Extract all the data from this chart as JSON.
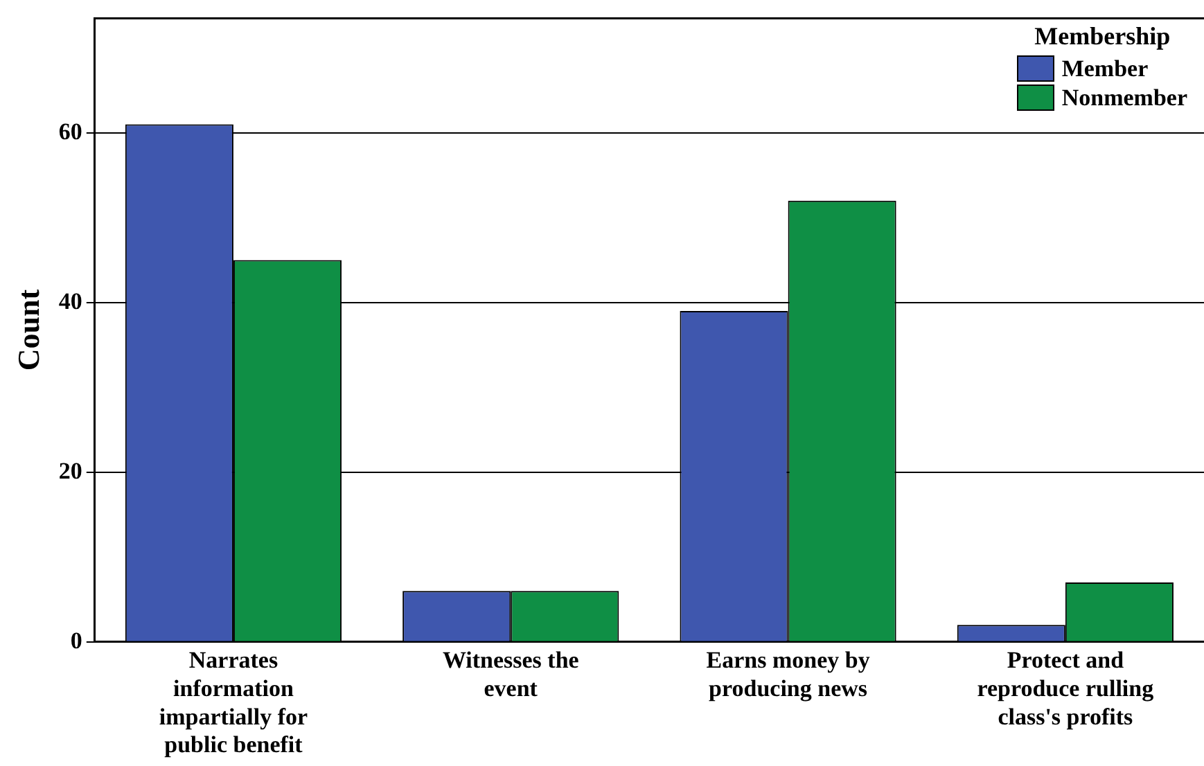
{
  "chart_data": {
    "type": "bar",
    "ylabel": "Count",
    "legend_title": "Membership",
    "legend": "top right",
    "grid": "y",
    "categories": [
      "Narrates information impartially for public benefit",
      "Witnesses the event",
      "Earns money by producing news",
      "Protect and reproduce rulling class's profits"
    ],
    "series": [
      {
        "name": "Member",
        "color": "#3f57ae",
        "values": [
          61,
          6,
          39,
          2
        ]
      },
      {
        "name": "Nonmember",
        "color": "#0f8f45",
        "values": [
          45,
          6,
          52,
          7
        ]
      }
    ],
    "ylim": [
      0,
      73.5
    ],
    "yticks": [
      0,
      20,
      40,
      60
    ]
  }
}
